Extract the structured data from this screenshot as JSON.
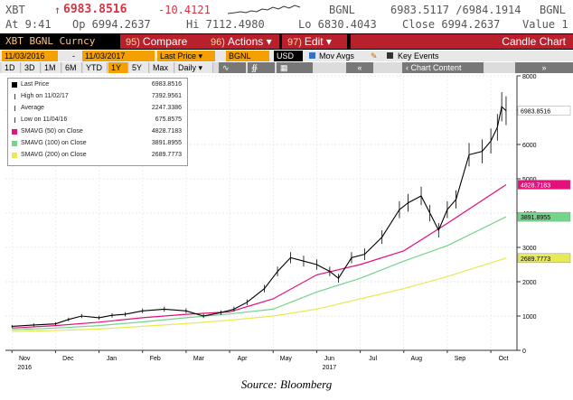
{
  "quote": {
    "ticker": "XBT",
    "arrow": "↑",
    "last": "6983.8516",
    "change": "-10.4121",
    "source": "BGNL",
    "bid_ask": "6983.5117 /6984.1914",
    "source2": "BGNL",
    "time": "At 9:41",
    "open": "Op 6994.2637",
    "high": "Hi 7112.4980",
    "low": "Lo 6830.4043",
    "close": "Close 6994.2637",
    "value": "Value 1"
  },
  "toolbar": {
    "title": "XBT BGNL Curncy",
    "compare_num": "95)",
    "compare": "Compare",
    "actions_num": "96)",
    "actions": "Actions ▾",
    "edit_num": "97)",
    "edit": "Edit ▾",
    "chart_type": "Candle Chart"
  },
  "daterow": {
    "start": "11/03/2016",
    "end": "11/03/2017",
    "field": "Last Price ▾",
    "source": "BGNL",
    "currency": "USD",
    "mov_avgs": "Mov Avgs",
    "key_events": "Key Events"
  },
  "periods": {
    "buttons": [
      "1D",
      "3D",
      "1M",
      "6M",
      "YTD",
      "1Y",
      "5Y",
      "Max",
      "Daily ▾"
    ],
    "selected": "1Y",
    "table": "Table",
    "chart_content": "Chart Content"
  },
  "legend": {
    "rows": [
      {
        "label": "Last Price",
        "value": "6983.8516",
        "color": "#000000",
        "marker": "square"
      },
      {
        "label": "High on 11/02/17",
        "value": "7392.9561",
        "color": "#444444",
        "marker": "high"
      },
      {
        "label": "Average",
        "value": "2247.3386",
        "color": "#444444",
        "marker": "avg"
      },
      {
        "label": "Low on 11/04/16",
        "value": "675.8575",
        "color": "#444444",
        "marker": "low"
      },
      {
        "label": "SMAVG (50) on Close",
        "value": "4828.7183",
        "color": "#e4107c",
        "marker": "square"
      },
      {
        "label": "SMAVG (100) on Close",
        "value": "3891.8955",
        "color": "#74d48a",
        "marker": "square"
      },
      {
        "label": "SMAVG (200) on Close",
        "value": "2689.7773",
        "color": "#e8ea52",
        "marker": "square"
      }
    ]
  },
  "source": "Source: Bloomberg",
  "chart_data": {
    "type": "line",
    "title": "XBT BGNL Curncy",
    "x_labels": [
      "Nov",
      "Dec",
      "Jan",
      "Feb",
      "Mar",
      "Apr",
      "May",
      "Jun",
      "Jul",
      "Aug",
      "Sep",
      "Oct"
    ],
    "year_labels": [
      {
        "label": "2016",
        "month": "Nov"
      },
      {
        "label": "2017",
        "month": "Jun"
      }
    ],
    "ylim": [
      0,
      8000
    ],
    "yticks": [
      0,
      1000,
      2000,
      3000,
      4000,
      5000,
      6000,
      7000,
      8000
    ],
    "axis_side": "right",
    "grid": true,
    "series": [
      {
        "name": "Last Price",
        "color": "#000000",
        "x": [
          0,
          0.5,
          1,
          1.3,
          1.6,
          2,
          2.3,
          2.6,
          3,
          3.5,
          4,
          4.4,
          4.8,
          5.1,
          5.4,
          5.8,
          6.1,
          6.4,
          6.7,
          7,
          7.3,
          7.5,
          7.8,
          8.1,
          8.5,
          8.9,
          9.1,
          9.4,
          9.6,
          9.8,
          10,
          10.2,
          10.5,
          10.8,
          11,
          11.15,
          11.25,
          11.35
        ],
        "values": [
          700,
          740,
          770,
          900,
          1000,
          950,
          1020,
          1050,
          1150,
          1200,
          1150,
          1000,
          1100,
          1200,
          1400,
          1800,
          2300,
          2700,
          2600,
          2500,
          2300,
          2100,
          2700,
          2800,
          3300,
          4100,
          4300,
          4500,
          4000,
          3500,
          4100,
          4400,
          5700,
          5800,
          6100,
          6500,
          7100,
          6984
        ]
      },
      {
        "name": "SMAVG (50) on Close",
        "color": "#e4107c",
        "x": [
          0,
          1,
          2,
          3,
          4,
          5,
          6,
          7,
          8,
          9,
          10,
          11.35
        ],
        "values": [
          650,
          720,
          820,
          950,
          1050,
          1120,
          1500,
          2200,
          2500,
          2900,
          3700,
          4829
        ]
      },
      {
        "name": "SMAVG (100) on Close",
        "color": "#74d48a",
        "x": [
          0,
          1,
          2,
          3,
          4,
          5,
          6,
          7,
          8,
          9,
          10,
          11.35
        ],
        "values": [
          600,
          650,
          720,
          830,
          950,
          1060,
          1200,
          1700,
          2100,
          2600,
          3050,
          3892
        ]
      },
      {
        "name": "SMAVG (200) on Close",
        "color": "#e8ea52",
        "x": [
          0,
          1,
          2,
          3,
          4,
          5,
          6,
          7,
          8,
          9,
          10,
          11.35
        ],
        "values": [
          550,
          580,
          620,
          700,
          780,
          880,
          1000,
          1200,
          1500,
          1800,
          2150,
          2690
        ]
      }
    ],
    "last_value_labels": [
      {
        "series": "Last Price",
        "value": 6983.8516,
        "text": "6983.8516",
        "bg": "#ffffff",
        "fg": "#000000"
      },
      {
        "series": "SMAVG (50) on Close",
        "value": 4828.7183,
        "text": "4828.7183",
        "bg": "#e4107c",
        "fg": "#ffffff"
      },
      {
        "series": "SMAVG (100) on Close",
        "value": 3891.8955,
        "text": "3891.8955",
        "bg": "#74d48a",
        "fg": "#000000"
      },
      {
        "series": "SMAVG (200) on Close",
        "value": 2689.7773,
        "text": "2689.7773",
        "bg": "#e8ea52",
        "fg": "#000000"
      }
    ]
  }
}
